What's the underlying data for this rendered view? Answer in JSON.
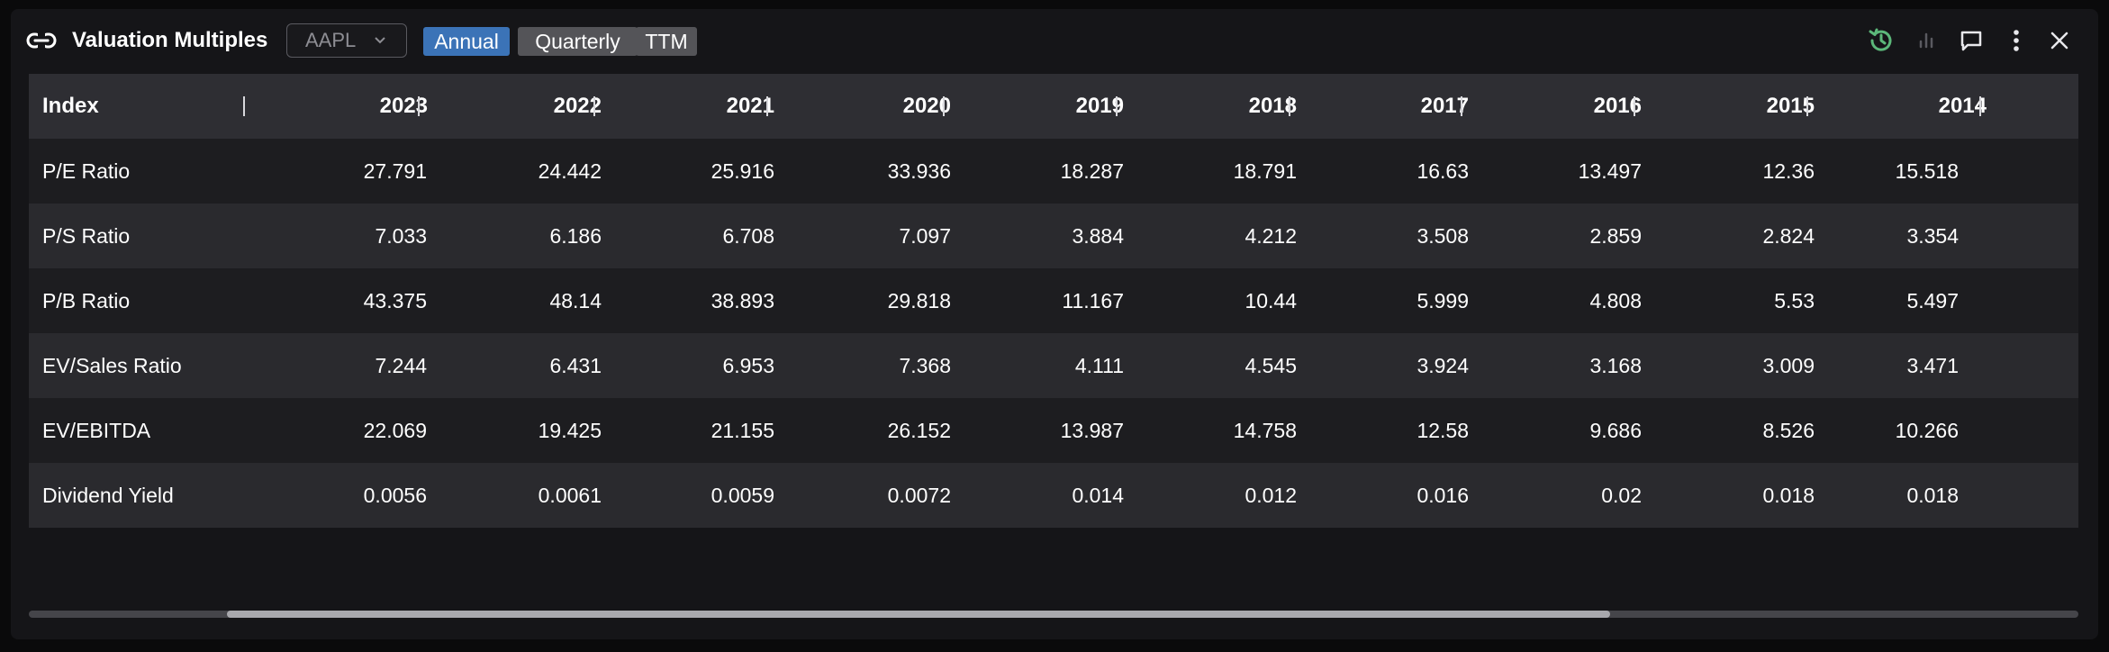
{
  "header": {
    "title": "Valuation Multiples",
    "ticker": "AAPL",
    "periods": [
      "Annual",
      "Quarterly",
      "TTM"
    ],
    "active_period": "Annual",
    "icons": [
      "refresh-icon",
      "chart-icon",
      "comment-icon",
      "more-icon",
      "close-icon"
    ]
  },
  "table": {
    "index_label": "Index",
    "columns": [
      "2023",
      "2022",
      "2021",
      "2020",
      "2019",
      "2018",
      "2017",
      "2016",
      "2015",
      "2014"
    ],
    "rows": [
      {
        "label": "P/E Ratio",
        "values": [
          "27.791",
          "24.442",
          "25.916",
          "33.936",
          "18.287",
          "18.791",
          "16.63",
          "13.497",
          "12.36",
          "15.518"
        ]
      },
      {
        "label": "P/S Ratio",
        "values": [
          "7.033",
          "6.186",
          "6.708",
          "7.097",
          "3.884",
          "4.212",
          "3.508",
          "2.859",
          "2.824",
          "3.354"
        ]
      },
      {
        "label": "P/B Ratio",
        "values": [
          "43.375",
          "48.14",
          "38.893",
          "29.818",
          "11.167",
          "10.44",
          "5.999",
          "4.808",
          "5.53",
          "5.497"
        ]
      },
      {
        "label": "EV/Sales Ratio",
        "values": [
          "7.244",
          "6.431",
          "6.953",
          "7.368",
          "4.111",
          "4.545",
          "3.924",
          "3.168",
          "3.009",
          "3.471"
        ]
      },
      {
        "label": "EV/EBITDA",
        "values": [
          "22.069",
          "19.425",
          "21.155",
          "26.152",
          "13.987",
          "14.758",
          "12.58",
          "9.686",
          "8.526",
          "10.266"
        ]
      },
      {
        "label": "Dividend Yield",
        "values": [
          "0.0056",
          "0.0061",
          "0.0059",
          "0.0072",
          "0.014",
          "0.012",
          "0.016",
          "0.02",
          "0.018",
          "0.018"
        ]
      }
    ]
  },
  "colors": {
    "accent": "#3b73b7",
    "refresh_icon": "#5cb87a"
  }
}
